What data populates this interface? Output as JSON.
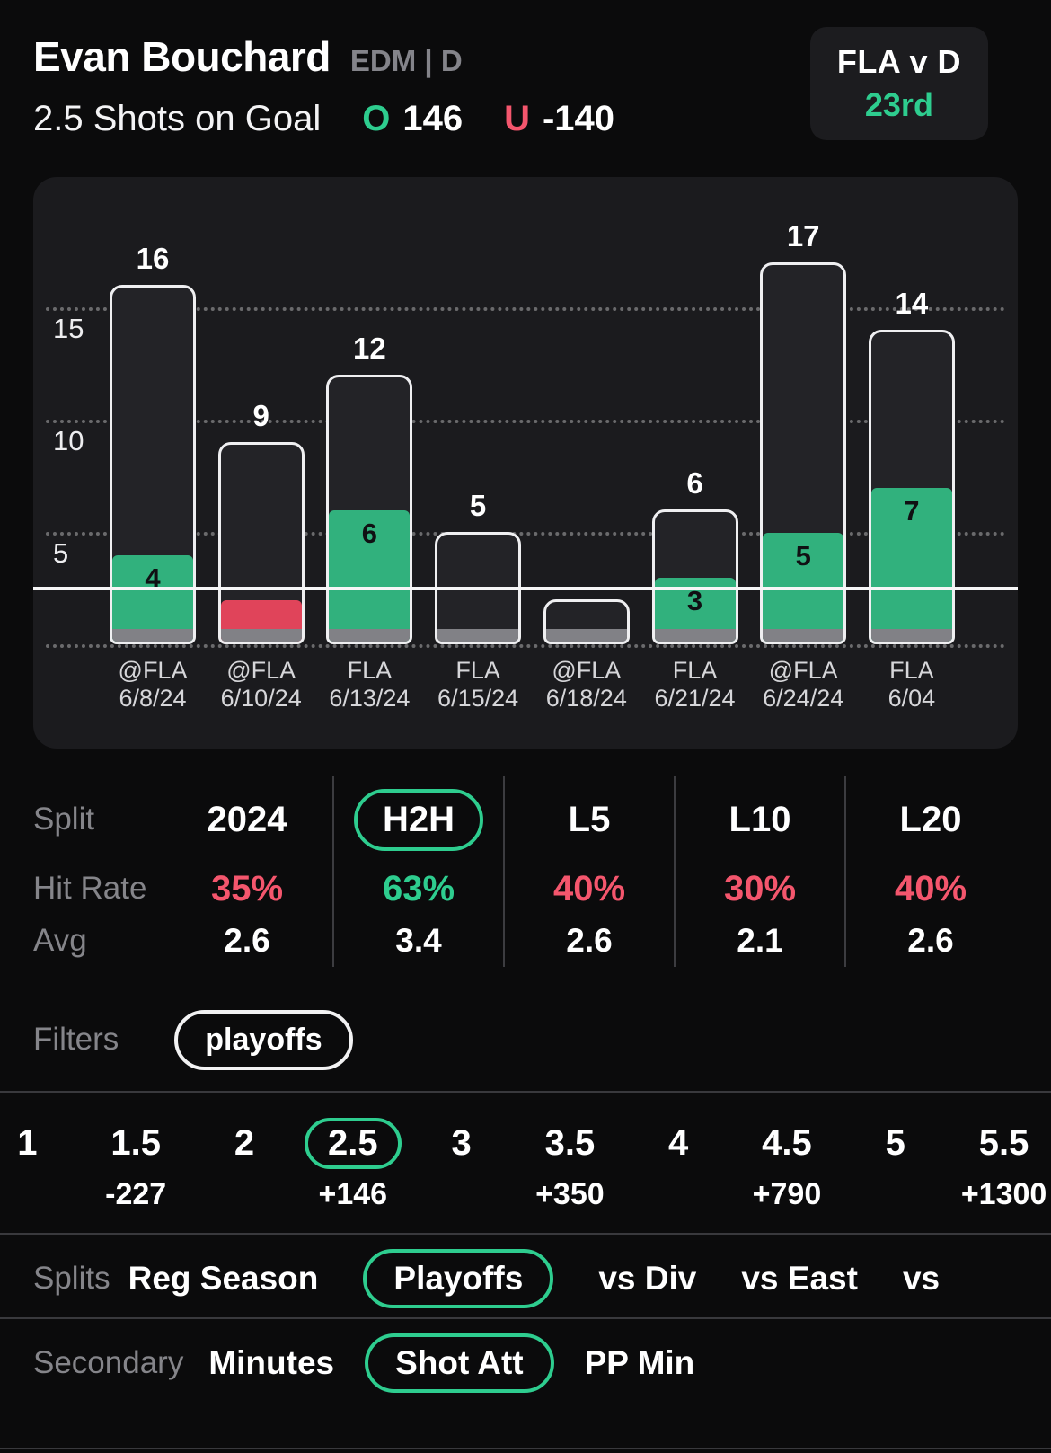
{
  "header": {
    "player_name": "Evan Bouchard",
    "team_position": "EDM | D",
    "prop_label": "2.5 Shots on Goal",
    "over": {
      "label": "O",
      "odds": "146"
    },
    "under": {
      "label": "U",
      "odds": "-140"
    },
    "matchup_card": {
      "matchup": "FLA v D",
      "rank": "23rd"
    }
  },
  "chart_data": {
    "type": "bar",
    "prop_line": 2.5,
    "ylim": [
      0,
      18
    ],
    "y_ticks": [
      5,
      10,
      15
    ],
    "series_note": "outlined bar = shot attempts, filled bar = shots on goal (green over / red under)",
    "games": [
      {
        "opponent": "@FLA",
        "date": "6/8/24",
        "attempts": 16,
        "attempts_label": "16",
        "shots_on_goal": 4,
        "shots_label": "4",
        "result": "over"
      },
      {
        "opponent": "@FLA",
        "date": "6/10/24",
        "attempts": 9,
        "attempts_label": "9",
        "shots_on_goal": 2,
        "shots_label": "",
        "result": "under"
      },
      {
        "opponent": "FLA",
        "date": "6/13/24",
        "attempts": 12,
        "attempts_label": "12",
        "shots_on_goal": 6,
        "shots_label": "6",
        "result": "over"
      },
      {
        "opponent": "FLA",
        "date": "6/15/24",
        "attempts": 5,
        "attempts_label": "5",
        "shots_on_goal": 0,
        "shots_label": "",
        "result": "under"
      },
      {
        "opponent": "@FLA",
        "date": "6/18/24",
        "attempts": 2,
        "attempts_label": "",
        "shots_on_goal": 0,
        "shots_label": "",
        "result": "under"
      },
      {
        "opponent": "FLA",
        "date": "6/21/24",
        "attempts": 6,
        "attempts_label": "6",
        "shots_on_goal": 3,
        "shots_label": "3",
        "result": "over"
      },
      {
        "opponent": "@FLA",
        "date": "6/24/24",
        "attempts": 17,
        "attempts_label": "17",
        "shots_on_goal": 5,
        "shots_label": "5",
        "result": "over"
      },
      {
        "opponent": "FLA",
        "date": "6/04",
        "attempts": 14,
        "attempts_label": "14",
        "shots_on_goal": 7,
        "shots_label": "7",
        "result": "over"
      }
    ]
  },
  "splits_table": {
    "row_labels": {
      "split": "Split",
      "hit_rate": "Hit Rate",
      "avg": "Avg"
    },
    "columns": [
      {
        "split": "2024",
        "hit_rate": "35%",
        "hit_rate_color": "red",
        "avg": "2.6",
        "selected": false
      },
      {
        "split": "H2H",
        "hit_rate": "63%",
        "hit_rate_color": "green",
        "avg": "3.4",
        "selected": true
      },
      {
        "split": "L5",
        "hit_rate": "40%",
        "hit_rate_color": "red",
        "avg": "2.6",
        "selected": false
      },
      {
        "split": "L10",
        "hit_rate": "30%",
        "hit_rate_color": "red",
        "avg": "2.1",
        "selected": false
      },
      {
        "split": "L20",
        "hit_rate": "40%",
        "hit_rate_color": "red",
        "avg": "2.6",
        "selected": false
      }
    ]
  },
  "filters": {
    "label": "Filters",
    "active": [
      "playoffs"
    ]
  },
  "alt_lines": {
    "options": [
      {
        "line": "1",
        "odds": ""
      },
      {
        "line": "1.5",
        "odds": "-227"
      },
      {
        "line": "2",
        "odds": ""
      },
      {
        "line": "2.5",
        "odds": "+146",
        "selected": true
      },
      {
        "line": "3",
        "odds": ""
      },
      {
        "line": "3.5",
        "odds": "+350"
      },
      {
        "line": "4",
        "odds": ""
      },
      {
        "line": "4.5",
        "odds": "+790"
      },
      {
        "line": "5",
        "odds": ""
      },
      {
        "line": "5.5",
        "odds": "+1300"
      }
    ]
  },
  "splits_row": {
    "label": "Splits",
    "options": [
      {
        "label": "Reg Season"
      },
      {
        "label": "Playoffs",
        "selected": true
      },
      {
        "label": "vs Div"
      },
      {
        "label": "vs East"
      },
      {
        "label": "vs"
      }
    ]
  },
  "secondary_row": {
    "label": "Secondary",
    "options": [
      {
        "label": "Minutes"
      },
      {
        "label": "Shot Att",
        "selected": true
      },
      {
        "label": "PP Min"
      }
    ]
  },
  "colors": {
    "green": "#2ecd8f",
    "red": "#f4566d",
    "bar_green": "#31b17d",
    "bar_red": "#e0445a"
  }
}
